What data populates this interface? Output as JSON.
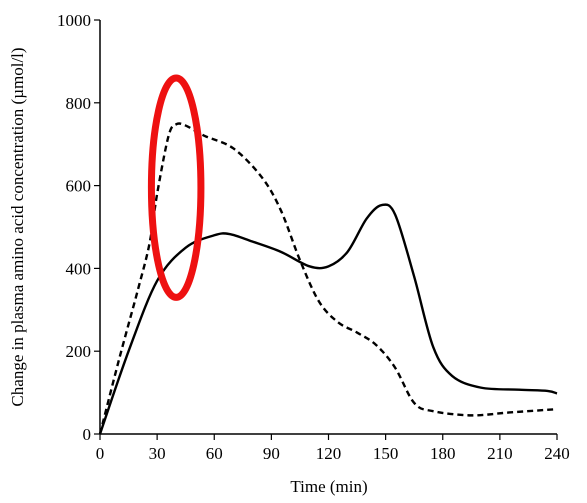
{
  "chart_data": {
    "type": "line",
    "xlabel": "Time (min)",
    "ylabel": "Change in plasma amino acid concentration (µmol/l)",
    "xlim": [
      0,
      240
    ],
    "ylim": [
      0,
      1000
    ],
    "x_ticks": [
      0,
      30,
      60,
      90,
      120,
      150,
      180,
      210,
      240
    ],
    "y_ticks": [
      0,
      200,
      400,
      600,
      800,
      1000
    ],
    "grid": false,
    "legend": "none",
    "series": [
      {
        "style": "solid",
        "color": "#000000",
        "points": [
          [
            0,
            0
          ],
          [
            15,
            200
          ],
          [
            30,
            370
          ],
          [
            45,
            450
          ],
          [
            60,
            480
          ],
          [
            68,
            483
          ],
          [
            80,
            465
          ],
          [
            95,
            440
          ],
          [
            110,
            405
          ],
          [
            120,
            405
          ],
          [
            130,
            440
          ],
          [
            140,
            520
          ],
          [
            148,
            553
          ],
          [
            155,
            530
          ],
          [
            165,
            380
          ],
          [
            175,
            210
          ],
          [
            185,
            140
          ],
          [
            200,
            112
          ],
          [
            220,
            107
          ],
          [
            235,
            104
          ],
          [
            240,
            98
          ]
        ]
      },
      {
        "style": "dashed",
        "color": "#000000",
        "points": [
          [
            0,
            0
          ],
          [
            10,
            180
          ],
          [
            20,
            350
          ],
          [
            26,
            460
          ],
          [
            30,
            580
          ],
          [
            36,
            720
          ],
          [
            40,
            748
          ],
          [
            45,
            745
          ],
          [
            55,
            720
          ],
          [
            70,
            690
          ],
          [
            85,
            620
          ],
          [
            95,
            540
          ],
          [
            105,
            420
          ],
          [
            115,
            320
          ],
          [
            125,
            270
          ],
          [
            135,
            245
          ],
          [
            145,
            215
          ],
          [
            155,
            160
          ],
          [
            165,
            75
          ],
          [
            175,
            55
          ],
          [
            195,
            45
          ],
          [
            215,
            52
          ],
          [
            240,
            60
          ]
        ]
      }
    ],
    "annotations": [
      {
        "shape": "ellipse",
        "color": "#ee1111",
        "cx": 40,
        "cy": 595,
        "rx": 13,
        "ry": 265
      }
    ]
  }
}
